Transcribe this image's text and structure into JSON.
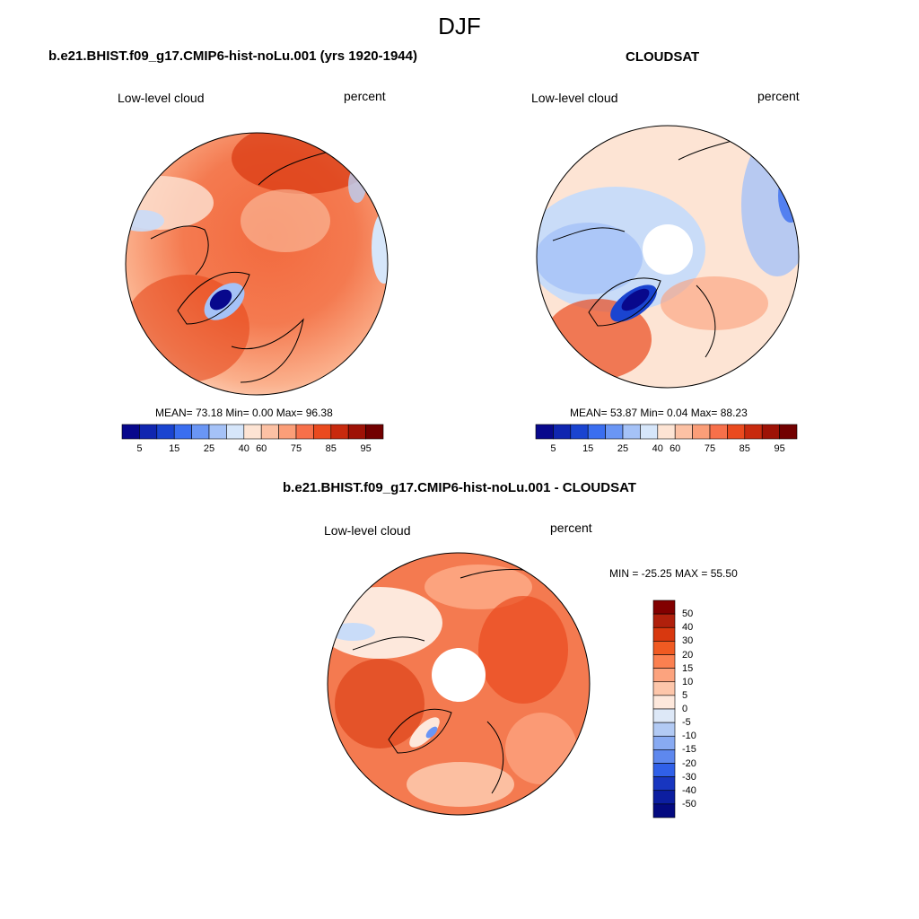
{
  "figure": {
    "season": "DJF",
    "panels": [
      {
        "title": "b.e21.BHIST.f09_g17.CMIP6-hist-noLu.001 (yrs 1920-1944)",
        "variable": "Low-level cloud",
        "units": "percent",
        "stats": "MEAN=  73.18  Min=   0.00  Max=  96.38"
      },
      {
        "title": "CLOUDSAT",
        "variable": "Low-level cloud",
        "units": "percent",
        "stats": "MEAN=  53.87  Min=   0.04  Max=  88.23"
      },
      {
        "title": "b.e21.BHIST.f09_g17.CMIP6-hist-noLu.001 - CLOUDSAT",
        "variable": "Low-level cloud",
        "units": "percent",
        "stats": "MIN = -25.25 MAX =  55.50"
      }
    ],
    "abs_colorbar": {
      "ticks": [
        "5",
        "15",
        "25",
        "40",
        "60",
        "75",
        "85",
        "95"
      ],
      "colors": [
        "#08088c",
        "#1026b0",
        "#1a44d0",
        "#3a6ef0",
        "#6a96f5",
        "#a5c2f7",
        "#d6e6fa",
        "#fde4d4",
        "#fcc1a4",
        "#fb9e78",
        "#f7704a",
        "#ea4a1e",
        "#c82a0e",
        "#9e1206",
        "#720000"
      ]
    },
    "diff_colorbar": {
      "ticks": [
        "50",
        "40",
        "30",
        "20",
        "15",
        "10",
        "5",
        "0",
        "-5",
        "-10",
        "-15",
        "-20",
        "-30",
        "-40",
        "-50"
      ],
      "colors": [
        "#820000",
        "#b0200c",
        "#d8380f",
        "#f05a22",
        "#fb8050",
        "#fca37e",
        "#fdc6aa",
        "#fde8dc",
        "#dde8f7",
        "#b2caf4",
        "#88aaf2",
        "#5e88ee",
        "#3060e8",
        "#1836c0",
        "#0c1ea0",
        "#040a80"
      ]
    }
  }
}
